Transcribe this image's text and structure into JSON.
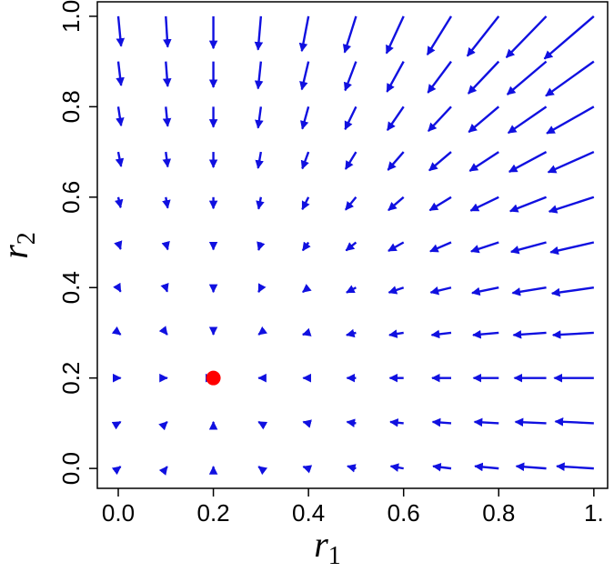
{
  "chart_data": {
    "type": "quiver",
    "xlabel": {
      "base": "r",
      "sub": "1"
    },
    "ylabel": {
      "base": "r",
      "sub": "2"
    },
    "xlim": [
      -0.044,
      1.029
    ],
    "ylim": [
      -0.044,
      1.032
    ],
    "xticks": [
      {
        "value": 0,
        "label": "0.0"
      },
      0.2,
      0.4,
      0.6,
      0.8,
      {
        "value": 1,
        "label": "1."
      }
    ],
    "yticks": [
      {
        "value": 0,
        "label": "0.0"
      },
      0.2,
      0.4,
      0.6,
      0.8,
      {
        "value": 1,
        "label": "1.0"
      }
    ],
    "color": "#1010e0",
    "x": [
      0,
      0.1,
      0.2,
      0.3,
      0.4,
      0.5,
      0.6,
      0.7,
      0.8,
      0.9,
      1
    ],
    "y": [
      0,
      0.1,
      0.2,
      0.3,
      0.4,
      0.5,
      0.6,
      0.7,
      0.8,
      0.9,
      1
    ],
    "u": [
      [
        0.005,
        0.003,
        0,
        -0.005,
        -0.011,
        -0.018,
        -0.027,
        -0.038,
        -0.05,
        -0.063,
        -0.078
      ],
      [
        0.005,
        0.003,
        0,
        -0.005,
        -0.011,
        -0.019,
        -0.028,
        -0.039,
        -0.051,
        -0.065,
        -0.081
      ],
      [
        0.005,
        0.003,
        0,
        -0.005,
        -0.011,
        -0.019,
        -0.029,
        -0.04,
        -0.053,
        -0.067,
        -0.083
      ],
      [
        0.005,
        0.003,
        0,
        -0.005,
        -0.012,
        -0.02,
        -0.03,
        -0.041,
        -0.054,
        -0.069,
        -0.086
      ],
      [
        0.005,
        0.003,
        0,
        -0.005,
        -0.012,
        -0.02,
        -0.031,
        -0.043,
        -0.056,
        -0.071,
        -0.088
      ],
      [
        0.005,
        0.004,
        0,
        -0.005,
        -0.012,
        -0.021,
        -0.032,
        -0.044,
        -0.058,
        -0.074,
        -0.091
      ],
      [
        0.005,
        0.004,
        0,
        -0.005,
        -0.013,
        -0.022,
        -0.032,
        -0.045,
        -0.059,
        -0.076,
        -0.094
      ],
      [
        0.006,
        0.004,
        0,
        -0.006,
        -0.013,
        -0.022,
        -0.033,
        -0.046,
        -0.061,
        -0.078,
        -0.096
      ],
      [
        0.006,
        0.004,
        0,
        -0.006,
        -0.013,
        -0.023,
        -0.034,
        -0.048,
        -0.063,
        -0.08,
        -0.099
      ],
      [
        0.006,
        0.004,
        0,
        -0.006,
        -0.014,
        -0.023,
        -0.035,
        -0.049,
        -0.064,
        -0.082,
        -0.101
      ],
      [
        0.006,
        0.004,
        0,
        -0.006,
        -0.014,
        -0.024,
        -0.036,
        -0.05,
        -0.066,
        -0.084,
        -0.104
      ]
    ],
    "v": [
      [
        0.004,
        0.004,
        0.004,
        0.004,
        0.004,
        0.005,
        0.005,
        0.005,
        0.005,
        0.005,
        0.005
      ],
      [
        0.003,
        0.003,
        0.003,
        0.003,
        0.003,
        0.003,
        0.003,
        0.003,
        0.003,
        0.003,
        0.004
      ],
      [
        0,
        0,
        0,
        0,
        0,
        0,
        0,
        0,
        0,
        0,
        0
      ],
      [
        -0.004,
        -0.004,
        -0.004,
        -0.004,
        -0.004,
        -0.005,
        -0.005,
        -0.005,
        -0.005,
        -0.005,
        -0.005
      ],
      [
        -0.009,
        -0.009,
        -0.01,
        -0.01,
        -0.01,
        -0.011,
        -0.011,
        -0.011,
        -0.012,
        -0.012,
        -0.013
      ],
      [
        -0.015,
        -0.016,
        -0.016,
        -0.017,
        -0.018,
        -0.018,
        -0.019,
        -0.02,
        -0.02,
        -0.021,
        -0.022
      ],
      [
        -0.023,
        -0.024,
        -0.025,
        -0.026,
        -0.027,
        -0.028,
        -0.029,
        -0.029,
        -0.03,
        -0.031,
        -0.032
      ],
      [
        -0.032,
        -0.033,
        -0.034,
        -0.036,
        -0.037,
        -0.038,
        -0.04,
        -0.041,
        -0.042,
        -0.044,
        -0.045
      ],
      [
        -0.042,
        -0.043,
        -0.045,
        -0.047,
        -0.049,
        -0.05,
        -0.052,
        -0.054,
        -0.056,
        -0.058,
        -0.059
      ],
      [
        -0.053,
        -0.055,
        -0.057,
        -0.06,
        -0.062,
        -0.064,
        -0.067,
        -0.069,
        -0.071,
        -0.073,
        -0.076
      ],
      [
        -0.066,
        -0.068,
        -0.071,
        -0.074,
        -0.077,
        -0.08,
        -0.082,
        -0.085,
        -0.088,
        -0.091,
        -0.094
      ]
    ],
    "point": [
      0.2,
      0.2
    ],
    "point_color": "#ff0000"
  }
}
